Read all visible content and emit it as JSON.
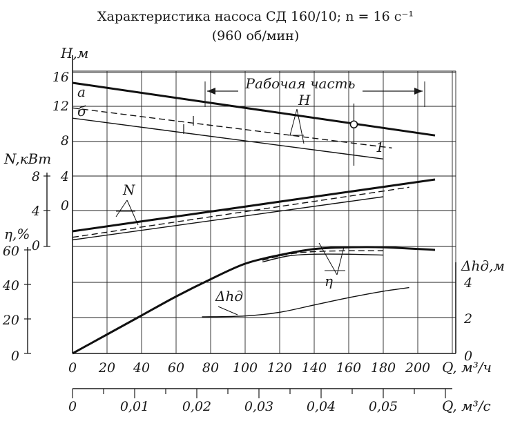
{
  "chart_data": {
    "type": "line",
    "title": "Характеристика насоса СД 160/10;  n = 16  с⁻¹",
    "subtitle": "(960 об/мин)",
    "working_part_label": "Рабочая часть",
    "xlabel": "Q, м³/ч",
    "xlabel2": "Q, м³/с",
    "x_ticks": [
      "0",
      "20",
      "40",
      "60",
      "80",
      "100",
      "120",
      "140",
      "160",
      "180",
      "200"
    ],
    "x2_ticks": [
      "0",
      "0,01",
      "0,02",
      "0,03",
      "0,04",
      "0,05"
    ],
    "xlim": [
      0,
      220
    ],
    "grid": true,
    "axes": {
      "H": {
        "label": "H,м",
        "ticks": [
          "16",
          "12",
          "8"
        ],
        "range": [
          8,
          16
        ]
      },
      "N": {
        "label": "N,кВт",
        "ticks": [
          "8",
          "4",
          "0"
        ],
        "range": [
          0,
          8
        ]
      },
      "N_inner": {
        "ticks": [
          "4",
          "0"
        ]
      },
      "eta": {
        "label": "η,%",
        "ticks": [
          "60",
          "40",
          "20",
          "0"
        ],
        "range": [
          0,
          60
        ]
      },
      "dh": {
        "label": "Δhд,м",
        "ticks": [
          "4",
          "2",
          "0"
        ],
        "range": [
          0,
          4
        ]
      }
    },
    "curve_labels": {
      "H": "H",
      "N": "N",
      "eta": "η",
      "dh": "Δhд",
      "a": "а",
      "b": "б",
      "one": "1"
    },
    "series": [
      {
        "axis": "H",
        "x": [
          0,
          210
        ],
        "y": [
          15.3,
          8.6
        ],
        "style": "solid-thick"
      },
      {
        "axis": "H",
        "x": [
          0,
          185
        ],
        "y": [
          12.1,
          7.0
        ],
        "style": "dashed"
      },
      {
        "axis": "H",
        "x": [
          0,
          180
        ],
        "y": [
          10.8,
          5.6
        ],
        "style": "solid-thin"
      },
      {
        "axis": "N",
        "x": [
          0,
          210
        ],
        "y": [
          1.6,
          7.6
        ],
        "style": "solid-thick"
      },
      {
        "axis": "N",
        "x": [
          0,
          195
        ],
        "y": [
          0.9,
          6.7
        ],
        "style": "dashed"
      },
      {
        "axis": "N",
        "x": [
          0,
          180
        ],
        "y": [
          0.6,
          5.6
        ],
        "style": "solid-thin"
      },
      {
        "axis": "eta",
        "x": [
          0,
          20,
          40,
          60,
          80,
          100,
          120,
          140,
          160,
          180,
          210
        ],
        "y": [
          0,
          11,
          22,
          33,
          43,
          52,
          57,
          60.5,
          61.5,
          61.5,
          60
        ],
        "style": "solid-thick"
      },
      {
        "axis": "eta",
        "x": [
          110,
          125,
          140,
          160,
          180
        ],
        "y": [
          54,
          57.5,
          59,
          59.5,
          59.5
        ],
        "style": "dashed"
      },
      {
        "axis": "eta",
        "x": [
          110,
          125,
          140,
          160,
          180
        ],
        "y": [
          53,
          56.5,
          57.5,
          57.5,
          57
        ],
        "style": "solid-thin"
      },
      {
        "axis": "dh",
        "x": [
          75,
          100,
          120,
          140,
          160,
          180,
          195
        ],
        "y": [
          2.0,
          2.05,
          2.25,
          2.65,
          3.05,
          3.4,
          3.6
        ],
        "style": "solid-thin"
      }
    ],
    "operating_point": {
      "axis": "H",
      "x": 163,
      "y": 10.0
    }
  }
}
